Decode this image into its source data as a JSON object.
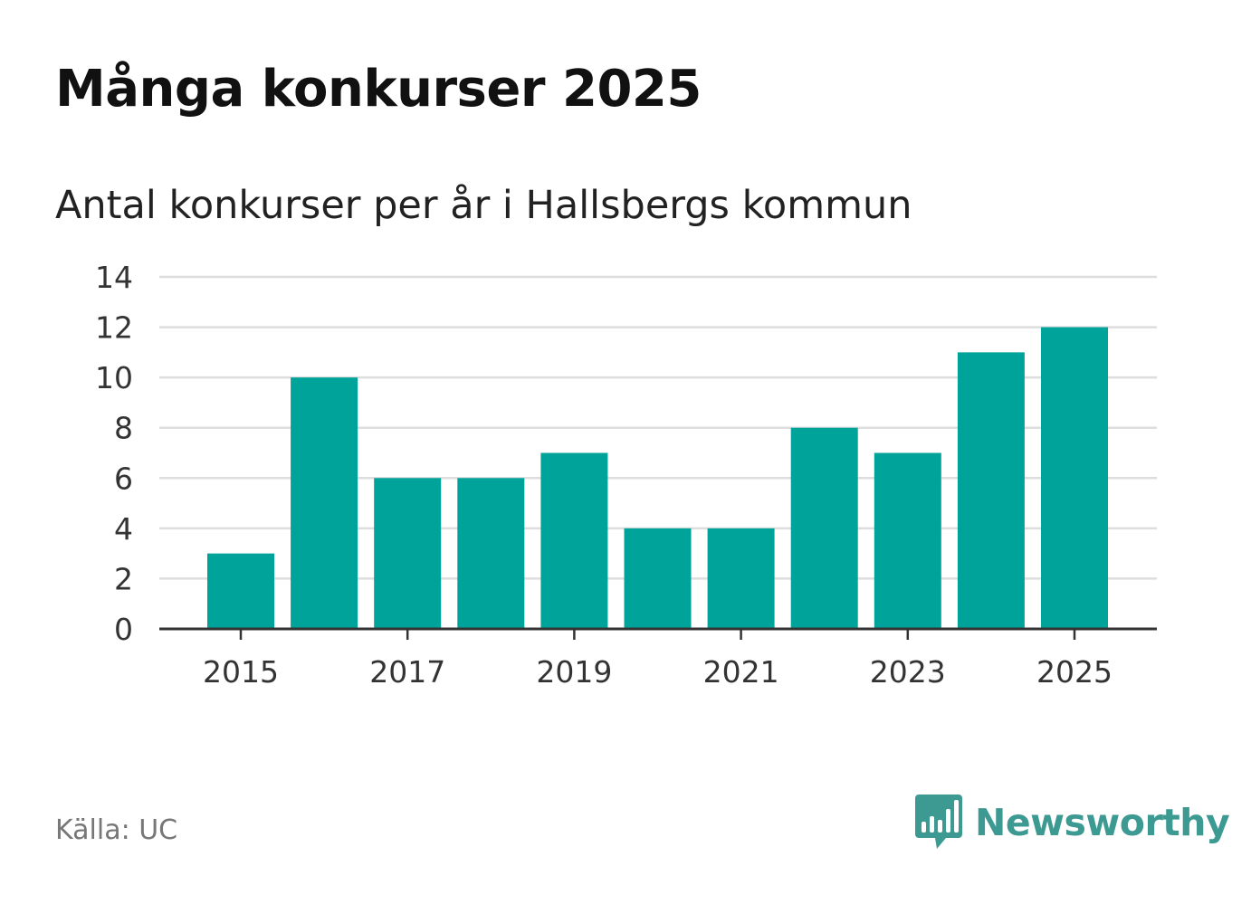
{
  "header": {
    "title": "Många konkurser 2025",
    "subtitle": "Antal konkurser per år i Hallsbergs kommun"
  },
  "footer": {
    "source": "Källa: UC",
    "brand": "Newsworthy",
    "brand_icon": "bar-chart-speech-bubble-icon"
  },
  "colors": {
    "bar": "#00a39a",
    "grid": "#dddddd",
    "axis": "#333333",
    "brand": "#3d9a92"
  },
  "chart_data": {
    "type": "bar",
    "title": "Många konkurser 2025",
    "subtitle": "Antal konkurser per år i Hallsbergs kommun",
    "xlabel": "",
    "ylabel": "",
    "categories": [
      "2015",
      "2016",
      "2017",
      "2018",
      "2019",
      "2020",
      "2021",
      "2022",
      "2023",
      "2024",
      "2025"
    ],
    "values": [
      3,
      10,
      6,
      6,
      7,
      4,
      4,
      8,
      7,
      11,
      12
    ],
    "x_tick_labels": [
      "2015",
      "2017",
      "2019",
      "2021",
      "2023",
      "2025"
    ],
    "y_ticks": [
      0,
      2,
      4,
      6,
      8,
      10,
      12,
      14
    ],
    "ylim": [
      0,
      14
    ],
    "grid": true,
    "legend": "none"
  }
}
